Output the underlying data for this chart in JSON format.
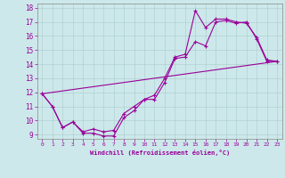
{
  "xlabel": "Windchill (Refroidissement éolien,°C)",
  "background_color": "#cce8ea",
  "line_color": "#990099",
  "xlim": [
    -0.5,
    23.5
  ],
  "ylim": [
    8.7,
    18.3
  ],
  "yticks": [
    9,
    10,
    11,
    12,
    13,
    14,
    15,
    16,
    17,
    18
  ],
  "xticks": [
    0,
    1,
    2,
    3,
    4,
    5,
    6,
    7,
    8,
    9,
    10,
    11,
    12,
    13,
    14,
    15,
    16,
    17,
    18,
    19,
    20,
    21,
    22,
    23
  ],
  "line1_x": [
    0,
    1,
    2,
    3,
    4,
    5,
    6,
    7,
    8,
    9,
    10,
    11,
    12,
    13,
    14,
    15,
    16,
    17,
    18,
    19,
    20,
    21,
    22,
    23
  ],
  "line1_y": [
    11.9,
    11.0,
    9.5,
    9.9,
    9.1,
    9.1,
    8.9,
    8.9,
    10.2,
    10.7,
    11.5,
    11.5,
    12.7,
    14.4,
    14.5,
    15.6,
    15.3,
    17.0,
    17.1,
    16.9,
    17.0,
    15.8,
    14.2,
    14.2
  ],
  "line2_x": [
    0,
    1,
    2,
    3,
    4,
    5,
    6,
    7,
    8,
    9,
    10,
    11,
    12,
    13,
    14,
    15,
    16,
    17,
    18,
    19,
    20,
    21,
    22,
    23
  ],
  "line2_y": [
    11.9,
    11.0,
    9.5,
    9.9,
    9.2,
    9.4,
    9.2,
    9.3,
    10.5,
    11.0,
    11.5,
    11.8,
    13.0,
    14.5,
    14.7,
    17.8,
    16.6,
    17.2,
    17.2,
    17.0,
    16.9,
    15.9,
    14.3,
    14.2
  ],
  "line3_x": [
    0,
    23
  ],
  "line3_y": [
    11.9,
    14.2
  ]
}
